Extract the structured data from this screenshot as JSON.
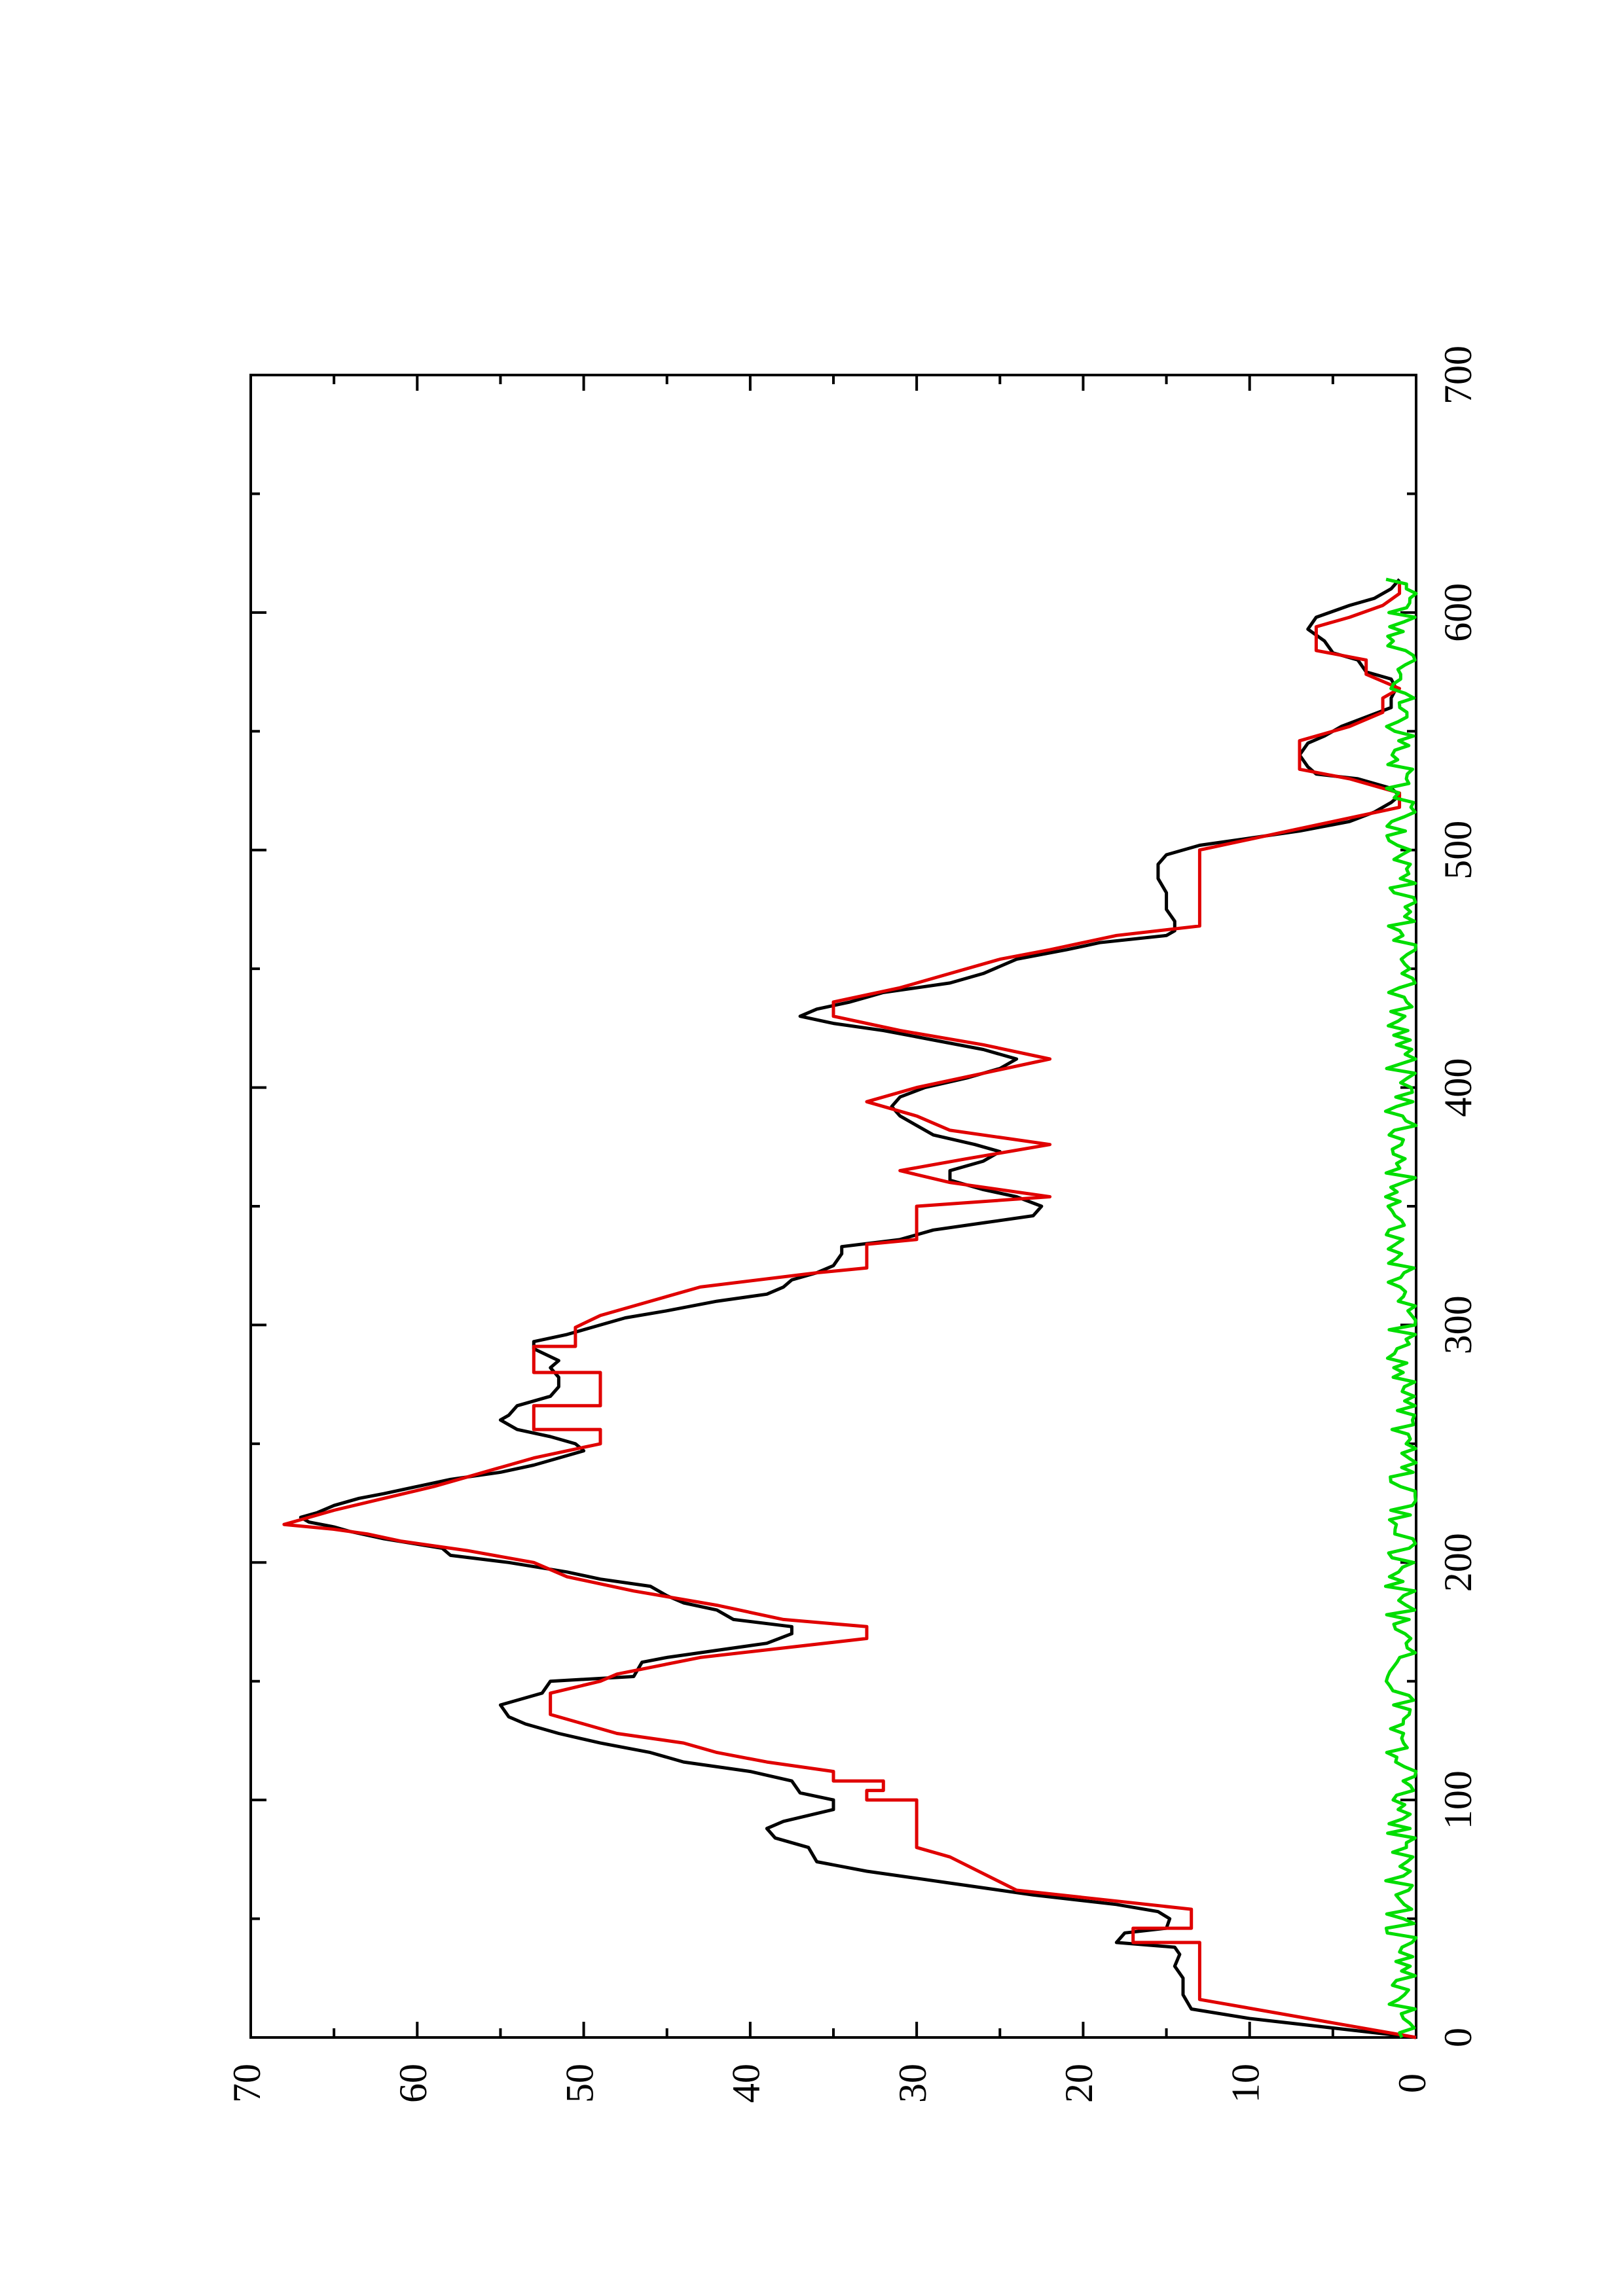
{
  "chart_data": {
    "type": "line",
    "orientation": "rotated-90-ccw",
    "title": "",
    "xlabel": "",
    "ylabel": "",
    "xlim": [
      0,
      700
    ],
    "ylim": [
      0,
      70
    ],
    "x_ticks": [
      "0",
      "100",
      "200",
      "300",
      "400",
      "500",
      "600",
      "700"
    ],
    "y_ticks": [
      "0",
      "10",
      "20",
      "30",
      "40",
      "50",
      "60",
      "70"
    ],
    "grid": false,
    "legend": "none",
    "series": [
      {
        "color": "#000000",
        "points": [
          [
            0,
            0
          ],
          [
            8,
            10
          ],
          [
            12,
            13.5
          ],
          [
            18,
            14
          ],
          [
            25,
            14
          ],
          [
            30,
            14.5
          ],
          [
            35,
            14.2
          ],
          [
            38,
            14.5
          ],
          [
            40,
            18
          ],
          [
            44,
            17.5
          ],
          [
            46,
            15
          ],
          [
            50,
            14.8
          ],
          [
            53,
            15.5
          ],
          [
            56,
            18
          ],
          [
            60,
            23
          ],
          [
            65,
            28
          ],
          [
            70,
            33
          ],
          [
            74,
            36
          ],
          [
            80,
            36.5
          ],
          [
            84,
            38.5
          ],
          [
            88,
            39
          ],
          [
            91,
            38
          ],
          [
            96,
            35
          ],
          [
            100,
            35
          ],
          [
            103,
            37
          ],
          [
            108,
            37.5
          ],
          [
            112,
            40
          ],
          [
            116,
            44
          ],
          [
            120,
            46
          ],
          [
            124,
            49
          ],
          [
            128,
            51.5
          ],
          [
            132,
            53.5
          ],
          [
            135,
            54.5
          ],
          [
            140,
            55
          ],
          [
            145,
            52.5
          ],
          [
            150,
            52
          ],
          [
            152,
            47
          ],
          [
            158,
            46.5
          ],
          [
            160,
            45
          ],
          [
            163,
            42
          ],
          [
            166,
            39
          ],
          [
            170,
            37.5
          ],
          [
            173,
            37.5
          ],
          [
            176,
            41
          ],
          [
            180,
            42
          ],
          [
            183,
            44
          ],
          [
            186,
            45
          ],
          [
            190,
            46
          ],
          [
            193,
            49
          ],
          [
            196,
            51
          ],
          [
            200,
            54.5
          ],
          [
            203,
            58
          ],
          [
            206,
            58.5
          ],
          [
            210,
            62
          ],
          [
            213,
            64
          ],
          [
            215,
            65
          ],
          [
            217,
            66.5
          ],
          [
            219,
            67
          ],
          [
            221,
            66
          ],
          [
            224,
            65
          ],
          [
            227,
            63.5
          ],
          [
            229,
            62
          ],
          [
            232,
            60
          ],
          [
            235,
            58
          ],
          [
            238,
            55
          ],
          [
            241,
            53
          ],
          [
            244,
            51.5
          ],
          [
            247,
            50
          ],
          [
            250,
            50.5
          ],
          [
            253,
            52
          ],
          [
            256,
            54
          ],
          [
            258,
            54.5
          ],
          [
            260,
            55
          ],
          [
            262,
            54.5
          ],
          [
            266,
            54
          ],
          [
            270,
            52
          ],
          [
            274,
            51.5
          ],
          [
            278,
            51.5
          ],
          [
            282,
            52
          ],
          [
            285,
            51.5
          ],
          [
            290,
            53
          ],
          [
            293,
            53
          ],
          [
            296,
            51
          ],
          [
            300,
            49
          ],
          [
            303,
            47.5
          ],
          [
            306,
            45
          ],
          [
            310,
            42
          ],
          [
            313,
            39
          ],
          [
            316,
            38
          ],
          [
            319,
            37.5
          ],
          [
            322,
            36
          ],
          [
            325,
            35
          ],
          [
            330,
            34.5
          ],
          [
            333,
            34.5
          ],
          [
            336,
            31
          ],
          [
            340,
            29
          ],
          [
            343,
            26
          ],
          [
            346,
            23
          ],
          [
            350,
            22.5
          ],
          [
            354,
            24
          ],
          [
            357,
            26
          ],
          [
            361,
            28
          ],
          [
            365,
            28
          ],
          [
            369,
            26
          ],
          [
            373,
            25
          ],
          [
            376,
            26.5
          ],
          [
            380,
            29
          ],
          [
            384,
            30
          ],
          [
            388,
            31
          ],
          [
            392,
            31.5
          ],
          [
            396,
            31
          ],
          [
            400,
            29.5
          ],
          [
            404,
            27
          ],
          [
            408,
            25
          ],
          [
            412,
            24
          ],
          [
            416,
            26
          ],
          [
            420,
            29
          ],
          [
            424,
            32
          ],
          [
            427,
            35
          ],
          [
            430,
            37
          ],
          [
            433,
            36
          ],
          [
            436,
            34
          ],
          [
            440,
            32
          ],
          [
            444,
            28
          ],
          [
            448,
            26
          ],
          [
            451,
            25
          ],
          [
            454,
            24
          ],
          [
            458,
            21
          ],
          [
            461,
            19
          ],
          [
            464,
            15
          ],
          [
            466,
            14.5
          ],
          [
            470,
            14.5
          ],
          [
            475,
            15
          ],
          [
            482,
            15
          ],
          [
            488,
            15.5
          ],
          [
            494,
            15.5
          ],
          [
            498,
            15
          ],
          [
            502,
            13
          ],
          [
            505,
            10
          ],
          [
            508,
            7
          ],
          [
            512,
            4
          ],
          [
            516,
            2.5
          ],
          [
            520,
            1.5
          ],
          [
            523,
            1
          ],
          [
            526,
            1.5
          ],
          [
            530,
            3.5
          ],
          [
            532,
            6
          ],
          [
            535,
            6.5
          ],
          [
            540,
            7
          ],
          [
            545,
            6.5
          ],
          [
            548,
            5.5
          ],
          [
            552,
            4.5
          ],
          [
            556,
            3
          ],
          [
            560,
            1.5
          ],
          [
            564,
            1.5
          ],
          [
            568,
            1.2
          ],
          [
            572,
            1.5
          ],
          [
            575,
            3
          ],
          [
            580,
            3.5
          ],
          [
            583,
            5
          ],
          [
            588,
            5.5
          ],
          [
            593,
            6.5
          ],
          [
            598,
            6
          ],
          [
            603,
            4
          ],
          [
            606,
            2.5
          ],
          [
            610,
            1.5
          ],
          [
            614,
            1
          ]
        ]
      },
      {
        "color": "#e00000",
        "points": [
          [
            0,
            0
          ],
          [
            16,
            13
          ],
          [
            40,
            13
          ],
          [
            40,
            17
          ],
          [
            46,
            17
          ],
          [
            46,
            13.5
          ],
          [
            54,
            13.5
          ],
          [
            62,
            24
          ],
          [
            76,
            28
          ],
          [
            80,
            30
          ],
          [
            100,
            30
          ],
          [
            100,
            33
          ],
          [
            104,
            33
          ],
          [
            104,
            32
          ],
          [
            108,
            32
          ],
          [
            108,
            35
          ],
          [
            112,
            35
          ],
          [
            116,
            39
          ],
          [
            120,
            42
          ],
          [
            124,
            44
          ],
          [
            128,
            48
          ],
          [
            132,
            50
          ],
          [
            136,
            52
          ],
          [
            145,
            52
          ],
          [
            150,
            49
          ],
          [
            153,
            48
          ],
          [
            160,
            43
          ],
          [
            168,
            33
          ],
          [
            173,
            33
          ],
          [
            176,
            38
          ],
          [
            182,
            42
          ],
          [
            188,
            47
          ],
          [
            194,
            51
          ],
          [
            200,
            53
          ],
          [
            205,
            57
          ],
          [
            209,
            61
          ],
          [
            212,
            63
          ],
          [
            214,
            65
          ],
          [
            216,
            68
          ],
          [
            218,
            67
          ],
          [
            222,
            65
          ],
          [
            227,
            62
          ],
          [
            232,
            59
          ],
          [
            236,
            57
          ],
          [
            240,
            55
          ],
          [
            244,
            53
          ],
          [
            247,
            51
          ],
          [
            250,
            49
          ],
          [
            256,
            49
          ],
          [
            256,
            53
          ],
          [
            266,
            53
          ],
          [
            266,
            49
          ],
          [
            280,
            49
          ],
          [
            280,
            53
          ],
          [
            291,
            53
          ],
          [
            291,
            50.5
          ],
          [
            299,
            50.5
          ],
          [
            304,
            49
          ],
          [
            310,
            46
          ],
          [
            316,
            43
          ],
          [
            322,
            36
          ],
          [
            324,
            33
          ],
          [
            334,
            33
          ],
          [
            336,
            30
          ],
          [
            350,
            30
          ],
          [
            354,
            22
          ],
          [
            360,
            28
          ],
          [
            365,
            31
          ],
          [
            370,
            27
          ],
          [
            376,
            22
          ],
          [
            382,
            28
          ],
          [
            388,
            30
          ],
          [
            394,
            33
          ],
          [
            400,
            30
          ],
          [
            406,
            26
          ],
          [
            412,
            22
          ],
          [
            418,
            26
          ],
          [
            424,
            31
          ],
          [
            430,
            35
          ],
          [
            436,
            35
          ],
          [
            442,
            31
          ],
          [
            448,
            28
          ],
          [
            454,
            25
          ],
          [
            458,
            22
          ],
          [
            464,
            18
          ],
          [
            468,
            13
          ],
          [
            500,
            13
          ],
          [
            506,
            9
          ],
          [
            512,
            5
          ],
          [
            518,
            1
          ],
          [
            524,
            1
          ],
          [
            530,
            4
          ],
          [
            534,
            7
          ],
          [
            540,
            7
          ],
          [
            546,
            7
          ],
          [
            552,
            4
          ],
          [
            558,
            2
          ],
          [
            564,
            2
          ],
          [
            568,
            1
          ],
          [
            574,
            3
          ],
          [
            580,
            3
          ],
          [
            584,
            6
          ],
          [
            594,
            6
          ],
          [
            598,
            4
          ],
          [
            603,
            2
          ],
          [
            608,
            1
          ],
          [
            612,
            1
          ]
        ]
      },
      {
        "color": "#00dd00",
        "noise_amplitude": 1.5,
        "x_range": [
          0,
          614
        ]
      }
    ]
  }
}
